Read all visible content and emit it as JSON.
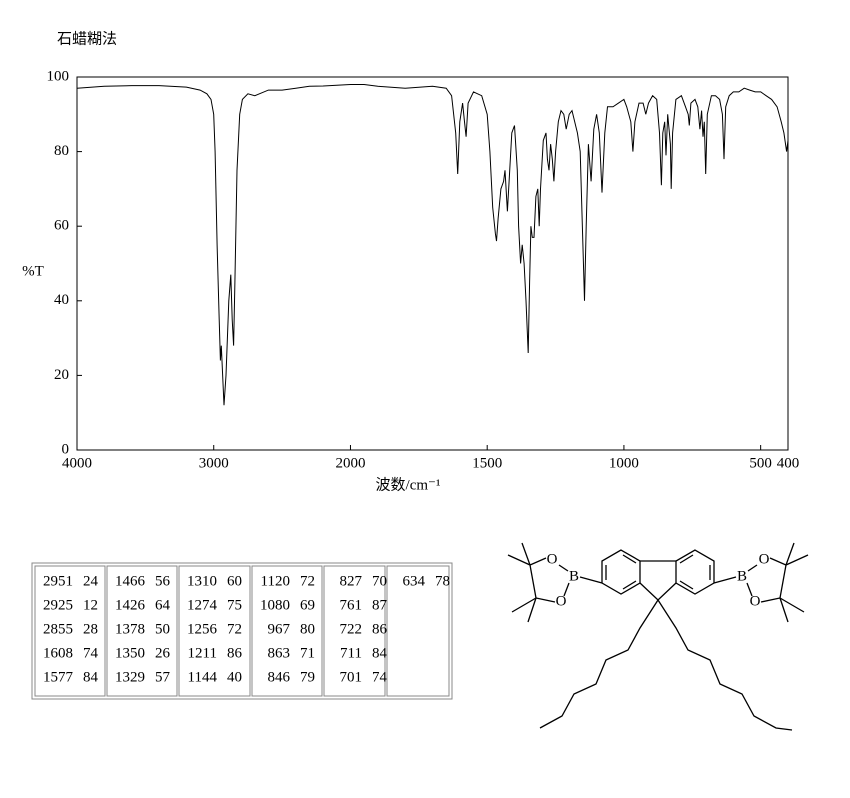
{
  "chart_data": {
    "type": "line",
    "title": "石蜡糊法",
    "xlabel": "波数/cm⁻¹",
    "ylabel": "%T",
    "xlim": [
      4000,
      400
    ],
    "ylim": [
      0,
      100
    ],
    "xscale": {
      "break": 2000,
      "factor": 2
    },
    "xticks": [
      4000,
      3000,
      2000,
      1500,
      1000,
      500,
      400
    ],
    "yticks": [
      0,
      20,
      40,
      60,
      80,
      100
    ],
    "x": [
      4000,
      3800,
      3600,
      3400,
      3200,
      3100,
      3050,
      3020,
      3000,
      2990,
      2975,
      2960,
      2951,
      2945,
      2925,
      2910,
      2890,
      2875,
      2865,
      2855,
      2845,
      2830,
      2810,
      2790,
      2750,
      2700,
      2600,
      2500,
      2400,
      2300,
      2200,
      2100,
      2000,
      1950,
      1900,
      1800,
      1700,
      1650,
      1630,
      1615,
      1608,
      1600,
      1590,
      1583,
      1577,
      1570,
      1550,
      1520,
      1500,
      1490,
      1480,
      1470,
      1466,
      1460,
      1450,
      1440,
      1435,
      1426,
      1420,
      1410,
      1400,
      1390,
      1385,
      1378,
      1372,
      1365,
      1358,
      1350,
      1345,
      1340,
      1335,
      1329,
      1322,
      1315,
      1310,
      1305,
      1295,
      1285,
      1280,
      1274,
      1268,
      1262,
      1256,
      1250,
      1240,
      1230,
      1220,
      1211,
      1200,
      1190,
      1180,
      1170,
      1160,
      1150,
      1144,
      1138,
      1130,
      1120,
      1110,
      1100,
      1090,
      1080,
      1070,
      1060,
      1040,
      1020,
      1000,
      990,
      975,
      967,
      960,
      945,
      930,
      920,
      910,
      895,
      880,
      870,
      863,
      858,
      851,
      846,
      840,
      830,
      827,
      822,
      810,
      790,
      775,
      765,
      761,
      755,
      740,
      730,
      722,
      716,
      711,
      706,
      701,
      695,
      680,
      665,
      650,
      640,
      634,
      628,
      615,
      600,
      580,
      560,
      540,
      520,
      500,
      480,
      460,
      440,
      425,
      415,
      405,
      400
    ],
    "series": [
      {
        "color": "#000000",
        "values": [
          97,
          97.5,
          97.7,
          97.7,
          97.3,
          96.5,
          95.5,
          94,
          90,
          80,
          55,
          35,
          24,
          28,
          12,
          20,
          40,
          47,
          35,
          28,
          45,
          75,
          90,
          94,
          95.5,
          95,
          96.5,
          96.5,
          97,
          97.5,
          97.6,
          97.8,
          98,
          98,
          97.5,
          97,
          97.5,
          97,
          95,
          85,
          74,
          88,
          93,
          88,
          84,
          93,
          96,
          95,
          90,
          80,
          65,
          58,
          56,
          62,
          70,
          72,
          75,
          64,
          72,
          85,
          87,
          75,
          60,
          50,
          55,
          50,
          40,
          26,
          45,
          60,
          57,
          57,
          68,
          70,
          60,
          70,
          83,
          85,
          78,
          75,
          82,
          78,
          72,
          80,
          88,
          91,
          90,
          86,
          90,
          91,
          88,
          85,
          80,
          55,
          40,
          60,
          82,
          72,
          86,
          90,
          85,
          69,
          85,
          92,
          92,
          93,
          94,
          92,
          88,
          80,
          88,
          93,
          93,
          90,
          93,
          95,
          94,
          85,
          71,
          85,
          88,
          79,
          90,
          82,
          70,
          85,
          94,
          95,
          92,
          90,
          87,
          93,
          94,
          92,
          86,
          91,
          84,
          88,
          74,
          90,
          95,
          95,
          94,
          90,
          78,
          92,
          95,
          96,
          96,
          97,
          96.5,
          96,
          96,
          95,
          94,
          92,
          88,
          85,
          80,
          83
        ]
      }
    ]
  },
  "peak_table": {
    "columns": [
      [
        [
          2951,
          24
        ],
        [
          2925,
          12
        ],
        [
          2855,
          28
        ],
        [
          1608,
          74
        ],
        [
          1577,
          84
        ]
      ],
      [
        [
          1466,
          56
        ],
        [
          1426,
          64
        ],
        [
          1378,
          50
        ],
        [
          1350,
          26
        ],
        [
          1329,
          57
        ]
      ],
      [
        [
          1310,
          60
        ],
        [
          1274,
          75
        ],
        [
          1256,
          72
        ],
        [
          1211,
          86
        ],
        [
          1144,
          40
        ]
      ],
      [
        [
          1120,
          72
        ],
        [
          1080,
          69
        ],
        [
          967,
          80
        ],
        [
          863,
          71
        ],
        [
          846,
          79
        ]
      ],
      [
        [
          827,
          70
        ],
        [
          761,
          87
        ],
        [
          722,
          86
        ],
        [
          711,
          84
        ],
        [
          701,
          74
        ]
      ],
      [
        [
          634,
          78
        ]
      ]
    ]
  },
  "molecule": {
    "atoms": [
      "B",
      "O",
      "O",
      "B",
      "O",
      "O"
    ]
  }
}
